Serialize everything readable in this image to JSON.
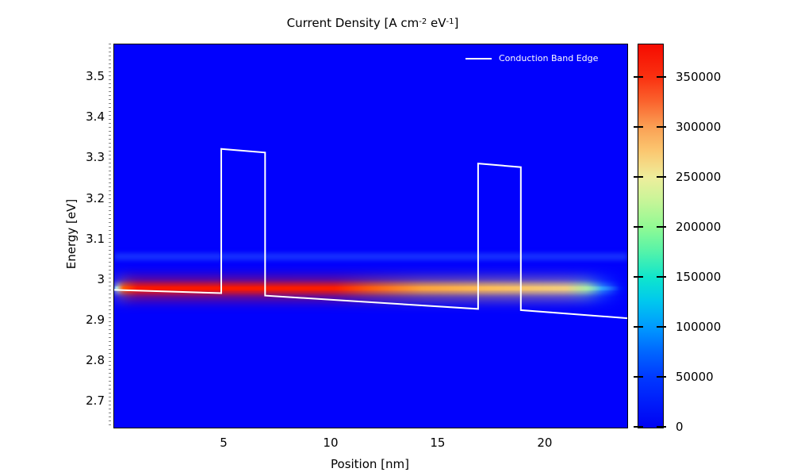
{
  "title": {
    "prefix": "Current Density [A cm",
    "sup1": "-2",
    "mid": " eV",
    "sup2": "-1",
    "suffix": "]"
  },
  "legend": {
    "label": "Conduction Band Edge",
    "line_color": "#ffffff"
  },
  "axes": {
    "x_label": "Position [nm]",
    "y_label": "Energy [eV]",
    "x_ticks": [
      "5",
      "10",
      "15",
      "20"
    ],
    "y_ticks": [
      "2.7",
      "2.8",
      "2.9",
      "3",
      "3.1",
      "3.2",
      "3.3",
      "3.4",
      "3.5"
    ],
    "x_range": [
      -0.15,
      23.82
    ],
    "y_range": [
      2.635,
      3.581
    ]
  },
  "colorbar": {
    "tick_labels": [
      "0",
      "50000",
      "100000",
      "150000",
      "200000",
      "250000",
      "300000",
      "350000"
    ],
    "tick_values": [
      0,
      50000,
      100000,
      150000,
      200000,
      250000,
      300000,
      350000
    ],
    "max_value": 383000,
    "gradient": [
      {
        "frac": 0.0,
        "color": "#0002f2"
      },
      {
        "frac": 0.065,
        "color": "#001cfa"
      },
      {
        "frac": 0.13,
        "color": "#0038ff"
      },
      {
        "frac": 0.2,
        "color": "#0068ff"
      },
      {
        "frac": 0.261,
        "color": "#0099ff"
      },
      {
        "frac": 0.33,
        "color": "#00c8ee"
      },
      {
        "frac": 0.391,
        "color": "#0fe5cd"
      },
      {
        "frac": 0.46,
        "color": "#55f3a9"
      },
      {
        "frac": 0.522,
        "color": "#90fa94"
      },
      {
        "frac": 0.59,
        "color": "#c6f598"
      },
      {
        "frac": 0.652,
        "color": "#eeee9c"
      },
      {
        "frac": 0.72,
        "color": "#fbc871"
      },
      {
        "frac": 0.783,
        "color": "#faa155"
      },
      {
        "frac": 0.85,
        "color": "#fa642e"
      },
      {
        "frac": 0.913,
        "color": "#fa3211"
      },
      {
        "frac": 1.0,
        "color": "#f60b00"
      }
    ]
  },
  "chart_data": {
    "type": "heatmap",
    "title": "Current Density [A cm^-2 eV^-1]",
    "xlabel": "Position [nm]",
    "ylabel": "Energy [eV]",
    "xlim": [
      -0.15,
      23.82
    ],
    "ylim": [
      2.635,
      3.581
    ],
    "colorbar_range": [
      0,
      383000
    ],
    "background_value": 0,
    "background_color": "#0101fd",
    "colormap": "jet-rainbow (blue-cyan-green-yellow-orange-red)",
    "resonance_streak": {
      "energy": 2.978,
      "description": "narrow horizontal current-density peak; ~380000 (red) near x=1-11 nm, decaying through orange/yellow (~250000) toward x=22 nm, fading to blue at right edge",
      "color_stops": [
        {
          "pos": 0.0,
          "color": "rgba(220,255,255,0)"
        },
        {
          "pos": 0.004,
          "color": "rgba(170,245,255,0.9)"
        },
        {
          "pos": 0.018,
          "color": "#ff5a00"
        },
        {
          "pos": 0.045,
          "color": "#fa1600"
        },
        {
          "pos": 0.43,
          "color": "#fa1d00"
        },
        {
          "pos": 0.5,
          "color": "#fb5c10"
        },
        {
          "pos": 0.6,
          "color": "#fba23c"
        },
        {
          "pos": 0.73,
          "color": "#fbbc58"
        },
        {
          "pos": 0.88,
          "color": "#f0cc80"
        },
        {
          "pos": 0.92,
          "color": "#a8e8a8"
        },
        {
          "pos": 0.95,
          "color": "rgba(60,200,255,0.55)"
        },
        {
          "pos": 0.985,
          "color": "rgba(0,80,255,0.1)"
        },
        {
          "pos": 1.0,
          "color": "rgba(0,0,255,0)"
        }
      ]
    },
    "secondary_faint_band": {
      "energy": 3.057,
      "color": "rgba(40,90,255,0.55)",
      "description": "very faint lighter-blue horizontal band across full width"
    },
    "series": [
      {
        "name": "Conduction Band Edge",
        "type": "line",
        "color": "#ffffff",
        "points": [
          [
            -0.15,
            2.975
          ],
          [
            4.85,
            2.967
          ],
          [
            4.85,
            3.323
          ],
          [
            6.9,
            3.314
          ],
          [
            6.9,
            2.961
          ],
          [
            16.85,
            2.928
          ],
          [
            16.85,
            3.287
          ],
          [
            18.85,
            3.278
          ],
          [
            18.85,
            2.925
          ],
          [
            23.82,
            2.905
          ]
        ]
      }
    ],
    "legend_position": "top-right inside plot"
  }
}
